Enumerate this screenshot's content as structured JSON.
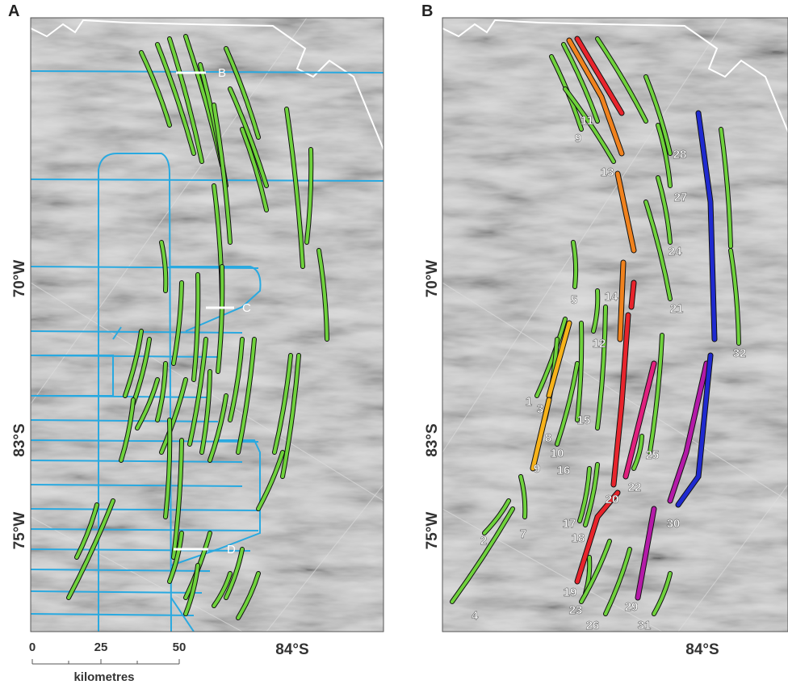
{
  "panel_a": {
    "label": "A",
    "profiles": [
      "B",
      "C",
      "D"
    ],
    "left_labels": [
      "70°W",
      "83°S",
      "75°W"
    ],
    "bottom_label": "84°S",
    "scale_bar": {
      "ticks": [
        "0",
        "25",
        "50"
      ],
      "unit": "kilometres"
    }
  },
  "panel_b": {
    "label": "B",
    "left_labels": [
      "70°W",
      "83°S",
      "75°W"
    ],
    "bottom_label": "84°S",
    "feature_labels": [
      "11",
      "9",
      "13",
      "28",
      "27",
      "24",
      "21",
      "5",
      "14",
      "12",
      "32",
      "1",
      "3",
      "8",
      "15",
      "10",
      "16",
      "9",
      "25",
      "22",
      "20",
      "17",
      "18",
      "30",
      "2",
      "7",
      "19",
      "23",
      "29",
      "26",
      "31",
      "4"
    ]
  }
}
